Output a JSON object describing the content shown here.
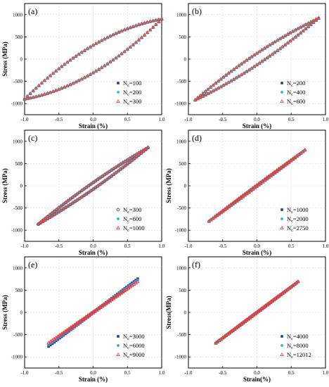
{
  "chart_data": [
    {
      "type": "scatter",
      "panel_label": "(a)",
      "xlabel": "Strain (%)",
      "ylabel": "Stress (MPa)",
      "xlim": [
        -1.0,
        1.0
      ],
      "ylim": [
        -1250,
        1250
      ],
      "xticks": [
        -1.0,
        -0.5,
        0.0,
        0.5,
        1.0
      ],
      "yticks": [
        -1000,
        -500,
        0,
        500,
        1000
      ],
      "xticklabels": [
        "-1.0",
        "-0.5",
        "0.0",
        "0.5",
        "1.0"
      ],
      "yticklabels": [
        "-1000",
        "-500",
        "0",
        "500",
        "1000"
      ],
      "legend_position": "lower-right",
      "loop": {
        "strain_amplitude": 1.0,
        "stress_amplitude": 900,
        "half_width_stress": 310
      },
      "series": [
        {
          "name": "N",
          "sub": "c",
          "suffix": "=100",
          "marker": "square",
          "color": "#1f3f8f"
        },
        {
          "name": "N",
          "sub": "c",
          "suffix": "=200",
          "marker": "circle",
          "color": "#20c0c0"
        },
        {
          "name": "N",
          "sub": "c",
          "suffix": "=300",
          "marker": "triangle",
          "color": "#e8383a"
        }
      ]
    },
    {
      "type": "scatter",
      "panel_label": "(b)",
      "xlabel": "Strain (%)",
      "ylabel": "",
      "xlim": [
        -1.0,
        1.0
      ],
      "ylim": [
        -1250,
        1250
      ],
      "xticks": [
        -1.0,
        -0.5,
        0.0,
        0.5,
        1.0
      ],
      "yticks": [
        -1000,
        -500,
        0,
        500,
        1000
      ],
      "xticklabels": [
        "-1.0",
        "-0.5",
        "0.0",
        "0.5",
        "1.0"
      ],
      "yticklabels": [
        "-1000",
        "-500",
        "0",
        "500",
        "1000"
      ],
      "legend_position": "lower-right",
      "loop": {
        "strain_amplitude": 0.9,
        "stress_amplitude": 920,
        "half_width_stress": 130
      },
      "series": [
        {
          "name": "N",
          "sub": "c",
          "suffix": "=200",
          "marker": "square",
          "color": "#1f3f8f"
        },
        {
          "name": "N",
          "sub": "c",
          "suffix": "=400",
          "marker": "circle",
          "color": "#20c0c0"
        },
        {
          "name": "N",
          "sub": "c",
          "suffix": "=600",
          "marker": "triangle",
          "color": "#e8383a"
        }
      ]
    },
    {
      "type": "scatter",
      "panel_label": "(c)",
      "xlabel": "Strain (%)",
      "ylabel": "Stress (MPa)",
      "xlim": [
        -1.0,
        1.0
      ],
      "ylim": [
        -1250,
        1250
      ],
      "xticks": [
        -1.0,
        -0.5,
        0.0,
        0.5,
        1.0
      ],
      "yticks": [
        -1000,
        -500,
        0,
        500,
        1000
      ],
      "xticklabels": [
        "-1.0",
        "-0.5",
        "0.0",
        "0.5",
        "1.0"
      ],
      "yticklabels": [
        "-1000",
        "-500",
        "0",
        "500",
        "1000"
      ],
      "legend_position": "lower-right",
      "loop": {
        "strain_amplitude": 0.8,
        "stress_amplitude": 860,
        "half_width_stress": 75
      },
      "series": [
        {
          "name": "N",
          "sub": "c",
          "suffix": "=300",
          "marker": "circle-open",
          "color": "#1f3f8f"
        },
        {
          "name": "N",
          "sub": "c",
          "suffix": "=600",
          "marker": "circle",
          "color": "#20c0c0"
        },
        {
          "name": "N",
          "sub": "c",
          "suffix": "=1000",
          "marker": "triangle",
          "color": "#e8383a"
        }
      ]
    },
    {
      "type": "scatter",
      "panel_label": "(d)",
      "xlabel": "Strain (%)",
      "ylabel": "Stress (MPa)",
      "xlim": [
        -1.0,
        1.0
      ],
      "ylim": [
        -1250,
        1250
      ],
      "xticks": [
        -1.0,
        -0.5,
        0.0,
        0.5,
        1.0
      ],
      "yticks": [
        -1000,
        -500,
        0,
        500,
        1000
      ],
      "xticklabels": [
        "-1.0",
        "-0.5",
        "0.0",
        "0.5",
        "1.0"
      ],
      "yticklabels": [
        "-1000",
        "-500",
        "0",
        "500",
        "1000"
      ],
      "legend_position": "lower-right",
      "loop": {
        "strain_amplitude": 0.7,
        "stress_amplitude": 800,
        "half_width_stress": 15
      },
      "series": [
        {
          "name": "N",
          "sub": "c",
          "suffix": "=1000",
          "marker": "square",
          "color": "#1f3f8f"
        },
        {
          "name": "N",
          "sub": "c",
          "suffix": "=2000",
          "marker": "circle",
          "color": "#20c0c0"
        },
        {
          "name": "N",
          "sub": "c",
          "suffix": "=2750",
          "marker": "triangle",
          "color": "#e8383a"
        }
      ]
    },
    {
      "type": "scatter",
      "panel_label": "(e)",
      "xlabel": "Strain (%)",
      "ylabel": "Stress (MPa)",
      "xlim": [
        -1.0,
        1.0
      ],
      "ylim": [
        -1250,
        1250
      ],
      "xticks": [
        -1.0,
        -0.5,
        0.0,
        0.5,
        1.0
      ],
      "yticks": [
        -1000,
        -500,
        0,
        500,
        1000
      ],
      "xticklabels": [
        "-1.0",
        "-0.5",
        "0.0",
        "0.5",
        "1.0"
      ],
      "yticklabels": [
        "-1000",
        "-500",
        "0",
        "500",
        "1000"
      ],
      "legend_position": "lower-right",
      "loop": {
        "strain_amplitude": 0.65,
        "stress_amplitude": 740,
        "half_width_stress": 10
      },
      "series": [
        {
          "name": "N",
          "sub": "c",
          "suffix": "=3000",
          "marker": "square",
          "color": "#1f3f8f",
          "peak": 760
        },
        {
          "name": "N",
          "sub": "c",
          "suffix": "=6000",
          "marker": "circle",
          "color": "#3aa0e0",
          "peak": 730
        },
        {
          "name": "N",
          "sub": "c",
          "suffix": "=9000",
          "marker": "triangle",
          "color": "#e8383a",
          "peak": 690
        }
      ]
    },
    {
      "type": "scatter",
      "panel_label": "(f)",
      "xlabel": "Strain(%)",
      "ylabel": "Stress(MPa)",
      "xlim": [
        -1.0,
        1.0
      ],
      "ylim": [
        -1250,
        1250
      ],
      "xticks": [
        -1.0,
        -0.5,
        0.0,
        0.5,
        1.0
      ],
      "yticks": [
        -1000,
        -500,
        0,
        500,
        1000
      ],
      "xticklabels": [
        "-1.0",
        "-0.5",
        "0.0",
        "0.5",
        "1.0"
      ],
      "yticklabels": [
        "-1000",
        "-500",
        "0",
        "500",
        "1000"
      ],
      "legend_position": "lower-right",
      "loop": {
        "strain_amplitude": 0.6,
        "stress_amplitude": 690,
        "half_width_stress": 8
      },
      "series": [
        {
          "name": "N",
          "sub": "c",
          "suffix": "=4000",
          "marker": "square",
          "color": "#1f3f8f"
        },
        {
          "name": "N",
          "sub": "c",
          "suffix": "=8000",
          "marker": "circle",
          "color": "#20c0c0"
        },
        {
          "name": "N",
          "sub": "c",
          "suffix": "=12012",
          "marker": "triangle",
          "color": "#e8383a"
        }
      ]
    }
  ]
}
